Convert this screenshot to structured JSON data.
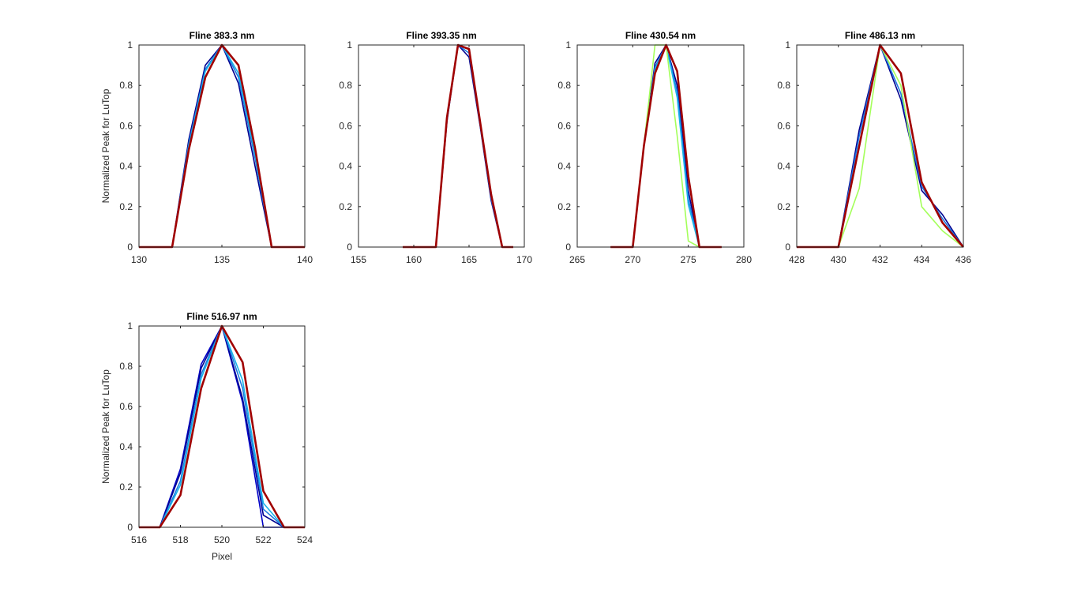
{
  "figure": {
    "shared_ylabel": "Normalized Peak for LuTop",
    "shared_xlabel": "Pixel"
  },
  "series_palette": [
    "#00008f",
    "#0000c8",
    "#1f3fd6",
    "#1e78e0",
    "#18b4e8",
    "#2ad0c8",
    "#3cb8ff",
    "#a4ff5a",
    "#7b1010",
    "#a00000"
  ],
  "chart_data": [
    {
      "type": "line",
      "title": "Fline 383.3 nm",
      "xlabel": "",
      "ylabel": "Normalized Peak for LuTop",
      "xlim": [
        130,
        140
      ],
      "ylim": [
        0,
        1
      ],
      "xticks": [
        130,
        135,
        140
      ],
      "yticks": [
        0,
        0.2,
        0.4,
        0.6,
        0.8,
        1
      ],
      "ytick_labels": [
        "0",
        "0.2",
        "0.4",
        "0.6",
        "0.8",
        "1"
      ],
      "grid": false,
      "x": [
        130,
        131,
        132,
        133,
        134,
        135,
        136,
        137,
        138,
        139,
        140
      ],
      "series": [
        {
          "color": "#00008f",
          "values": [
            0,
            0,
            0,
            0.53,
            0.9,
            1,
            0.81,
            0.4,
            0,
            0,
            0
          ]
        },
        {
          "color": "#1e78e0",
          "values": [
            0,
            0,
            0,
            0.51,
            0.88,
            1,
            0.84,
            0.44,
            0,
            0,
            0
          ]
        },
        {
          "color": "#18b4e8",
          "values": [
            0,
            0,
            0,
            0.5,
            0.87,
            1,
            0.86,
            0.46,
            0,
            0,
            0
          ]
        },
        {
          "color": "#a00000",
          "values": [
            0,
            0,
            0,
            0.48,
            0.84,
            1,
            0.9,
            0.49,
            0,
            0,
            0
          ]
        }
      ]
    },
    {
      "type": "line",
      "title": "Fline 393.35 nm",
      "xlabel": "",
      "ylabel": "",
      "xlim": [
        155,
        170
      ],
      "ylim": [
        0,
        1
      ],
      "xticks": [
        155,
        160,
        165,
        170
      ],
      "yticks": [
        0,
        0.2,
        0.4,
        0.6,
        0.8,
        1
      ],
      "ytick_labels": [
        "0",
        "0.2",
        "0.4",
        "0.6",
        "0.8",
        "1"
      ],
      "grid": false,
      "x": [
        159,
        160,
        161,
        162,
        163,
        164,
        165,
        166,
        167,
        168,
        169
      ],
      "series": [
        {
          "color": "#00008f",
          "values": [
            0,
            0,
            0,
            0,
            0.62,
            1,
            0.94,
            0.6,
            0.23,
            0,
            0
          ]
        },
        {
          "color": "#1e78e0",
          "values": [
            0,
            0,
            0,
            0,
            0.63,
            1,
            0.96,
            0.61,
            0.24,
            0,
            0
          ]
        },
        {
          "color": "#a00000",
          "values": [
            0,
            0,
            0,
            0,
            0.64,
            1,
            0.98,
            0.62,
            0.26,
            0,
            0
          ]
        }
      ]
    },
    {
      "type": "line",
      "title": "Fline 430.54 nm",
      "xlabel": "",
      "ylabel": "",
      "xlim": [
        265,
        280
      ],
      "ylim": [
        0,
        1
      ],
      "xticks": [
        265,
        270,
        275,
        280
      ],
      "yticks": [
        0,
        0.2,
        0.4,
        0.6,
        0.8,
        1
      ],
      "ytick_labels": [
        "0",
        "0.2",
        "0.4",
        "0.6",
        "0.8",
        "1"
      ],
      "grid": false,
      "x": [
        268,
        269,
        270,
        271,
        272,
        273,
        274,
        275,
        276,
        277,
        278
      ],
      "series": [
        {
          "color": "#00008f",
          "values": [
            0,
            0,
            0,
            0.5,
            0.91,
            1,
            0.8,
            0.28,
            0,
            0,
            0
          ]
        },
        {
          "color": "#1e78e0",
          "values": [
            0,
            0,
            0,
            0.5,
            0.89,
            1,
            0.77,
            0.24,
            0,
            0,
            0
          ]
        },
        {
          "color": "#18b4e8",
          "values": [
            0,
            0,
            0,
            0.5,
            0.88,
            1,
            0.74,
            0.21,
            0,
            0,
            0
          ]
        },
        {
          "color": "#a4ff5a",
          "values": [
            0,
            0,
            0,
            0.5,
            1,
            1,
            0.55,
            0.03,
            0,
            0,
            0
          ]
        },
        {
          "color": "#a00000",
          "values": [
            0,
            0,
            0,
            0.5,
            0.86,
            1,
            0.87,
            0.35,
            0,
            0,
            0
          ]
        }
      ]
    },
    {
      "type": "line",
      "title": "Fline 486.13 nm",
      "xlabel": "",
      "ylabel": "",
      "xlim": [
        428,
        436
      ],
      "ylim": [
        0,
        1
      ],
      "xticks": [
        428,
        430,
        432,
        434,
        436
      ],
      "yticks": [
        0,
        0.2,
        0.4,
        0.6,
        0.8,
        1
      ],
      "ytick_labels": [
        "0",
        "0.2",
        "0.4",
        "0.6",
        "0.8",
        "1"
      ],
      "grid": false,
      "x": [
        428,
        429,
        430,
        431,
        432,
        433,
        434,
        435,
        436
      ],
      "series": [
        {
          "color": "#00008f",
          "values": [
            0,
            0,
            0,
            0.58,
            1,
            0.73,
            0.28,
            0.16,
            0
          ]
        },
        {
          "color": "#1e78e0",
          "values": [
            0,
            0,
            0,
            0.55,
            1,
            0.76,
            0.3,
            0.14,
            0
          ]
        },
        {
          "color": "#a4ff5a",
          "values": [
            0,
            0,
            0,
            0.29,
            1,
            0.8,
            0.2,
            0.08,
            0
          ]
        },
        {
          "color": "#a00000",
          "values": [
            0,
            0,
            0,
            0.5,
            1,
            0.86,
            0.32,
            0.12,
            0
          ]
        }
      ]
    },
    {
      "type": "line",
      "title": "Fline 516.97 nm",
      "xlabel": "Pixel",
      "ylabel": "Normalized Peak for LuTop",
      "xlim": [
        516,
        524
      ],
      "ylim": [
        0,
        1
      ],
      "xticks": [
        516,
        518,
        520,
        522,
        524
      ],
      "yticks": [
        0,
        0.2,
        0.4,
        0.6,
        0.8,
        1
      ],
      "ytick_labels": [
        "0",
        "0.2",
        "0.4",
        "0.6",
        "0.8",
        "1"
      ],
      "grid": false,
      "x": [
        516,
        517,
        518,
        519,
        520,
        521,
        522,
        523,
        524
      ],
      "series": [
        {
          "color": "#0000c8",
          "values": [
            0,
            0,
            0.29,
            0.81,
            1,
            0.62,
            0,
            0,
            0
          ]
        },
        {
          "color": "#00008f",
          "values": [
            0,
            0,
            0.27,
            0.79,
            1,
            0.64,
            0.06,
            0,
            0
          ]
        },
        {
          "color": "#1e78e0",
          "values": [
            0,
            0,
            0.23,
            0.76,
            1,
            0.69,
            0.09,
            0,
            0
          ]
        },
        {
          "color": "#18b4e8",
          "values": [
            0,
            0,
            0.21,
            0.74,
            1,
            0.73,
            0.12,
            0,
            0
          ]
        },
        {
          "color": "#a00000",
          "values": [
            0,
            0,
            0.16,
            0.69,
            1,
            0.82,
            0.18,
            0,
            0
          ]
        }
      ]
    }
  ]
}
